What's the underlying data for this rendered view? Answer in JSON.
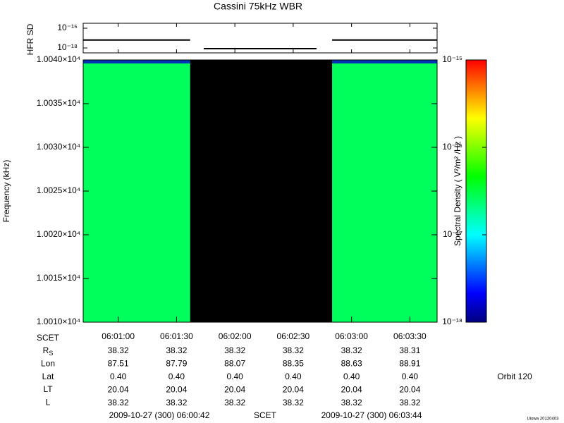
{
  "chart_data": [
    {
      "type": "hfr-line",
      "ylabel": "HFR SD",
      "log": true,
      "color": "#000000",
      "ylim": [
        1.8e-19,
        5.6e-15
      ],
      "yticks": [
        {
          "value": 1e-15,
          "label": "10⁻¹⁵"
        },
        {
          "value": 1e-18,
          "label": "10⁻¹⁸"
        }
      ],
      "segments": [
        {
          "x": [
            "06:00:42",
            "06:01:37"
          ],
          "value": 1.6e-17
        },
        {
          "x": [
            "06:01:44",
            "06:02:42"
          ],
          "value": 8e-19
        },
        {
          "x": [
            "06:02:50",
            "06:03:44"
          ],
          "value": 1.6e-17
        }
      ]
    },
    {
      "type": "spectrogram",
      "title": "Cassini 75kHz WBR",
      "ylabel": "Frequency (kHz)",
      "xlim": [
        "06:00:42",
        "06:03:44"
      ],
      "xticks": [
        "06:01:00",
        "06:01:30",
        "06:02:00",
        "06:02:30",
        "06:03:00",
        "06:03:30"
      ],
      "ylim": [
        10010,
        10040
      ],
      "yticks": [
        {
          "value": 10010,
          "label": "1.0010×10⁴"
        },
        {
          "value": 10015,
          "label": "1.0015×10⁴"
        },
        {
          "value": 10020,
          "label": "1.0020×10⁴"
        },
        {
          "value": 10025,
          "label": "1.0025×10⁴"
        },
        {
          "value": 10030,
          "label": "1.0030×10⁴"
        },
        {
          "value": 10035,
          "label": "1.0035×10⁴"
        },
        {
          "value": 10040,
          "label": "1.0040×10⁴"
        }
      ],
      "segments": [
        {
          "x": [
            "06:00:42",
            "06:01:37"
          ],
          "value": 2.7e-17
        },
        {
          "x": [
            "06:02:50",
            "06:03:44"
          ],
          "value": 2.7e-17
        }
      ],
      "colorbar": {
        "label": "Spectral Density ( V²/m² /Hz )",
        "log": true,
        "zlim": [
          1e-18,
          1e-15
        ],
        "ticks": [
          {
            "value": 1e-18,
            "label": "10⁻¹⁸"
          },
          {
            "value": 1e-17,
            "label": "10⁻¹⁷"
          },
          {
            "value": 1e-16,
            "label": "10⁻¹⁶"
          },
          {
            "value": 1e-15,
            "label": "10⁻¹⁵"
          }
        ],
        "colors": [
          "#00007f",
          "#0000ff",
          "#0080ff",
          "#00ffff",
          "#00ff80",
          "#00ff00",
          "#80ff00",
          "#ffff00",
          "#ff8000",
          "#ff0000"
        ]
      }
    }
  ],
  "ephemeris": {
    "scet_label": "SCET",
    "rows": [
      {
        "label": {
          "text": "R",
          "sub": "S"
        },
        "values": [
          "38.32",
          "38.32",
          "38.32",
          "38.32",
          "38.32",
          "38.31"
        ]
      },
      {
        "label": {
          "text": "Lon"
        },
        "values": [
          "87.51",
          "87.79",
          "88.07",
          "88.35",
          "88.63",
          "88.91"
        ]
      },
      {
        "label": {
          "text": "Lat"
        },
        "values": [
          "0.40",
          "0.40",
          "0.40",
          "0.40",
          "0.40",
          "0.40"
        ]
      },
      {
        "label": {
          "text": "LT"
        },
        "values": [
          "20.04",
          "20.04",
          "20.04",
          "20.04",
          "20.04",
          "20.04"
        ]
      },
      {
        "label": {
          "text": "L"
        },
        "values": [
          "38.32",
          "38.32",
          "38.32",
          "38.32",
          "38.32",
          "38.32"
        ]
      }
    ]
  },
  "footer": {
    "start": "2009-10-27 (300) 06:00:42",
    "middle": "SCET",
    "end": "2009-10-27 (300) 06:03:44",
    "orbit": "Orbit 120",
    "credit": "Uiowa 20120403"
  }
}
